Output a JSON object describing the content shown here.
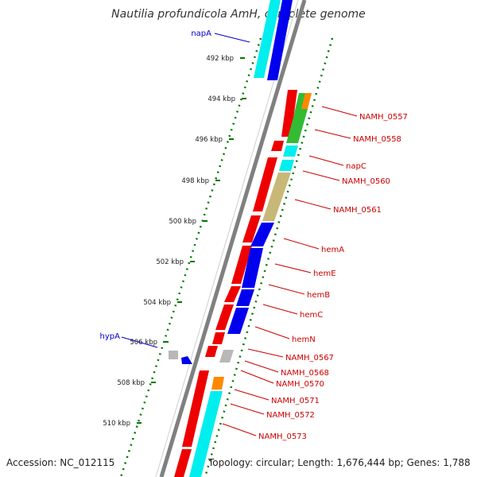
{
  "title": "Nautilia profundicola AmH, complete genome",
  "accession": "Accession: NC_012115",
  "topology": "Topology: circular; Length: 1,676,444 bp; Genes: 1,788",
  "colors": {
    "label_red": "#cc0000",
    "label_blue": "#0000cc",
    "backbone": "#808080",
    "tick": "#007700",
    "cds_red": "#ee0000",
    "cds_blue": "#0000ee",
    "cds_cyan": "#00eeee",
    "cds_green": "#33bb33",
    "cds_orange": "#ff8800",
    "cds_khaki": "#c8b878",
    "cds_gray": "#b8b8b8"
  },
  "ticks": [
    "492 kbp",
    "494 kbp",
    "496 kbp",
    "498 kbp",
    "500 kbp",
    "502 kbp",
    "504 kbp",
    "506 kbp",
    "508 kbp",
    "510 kbp"
  ],
  "blue_labels": [
    "napA",
    "hypA"
  ],
  "red_labels": [
    "NAMH_0557",
    "NAMH_0558",
    "napC",
    "NAMH_0560",
    "NAMH_0561",
    "hemA",
    "hemE",
    "hemB",
    "hemC",
    "hemN",
    "NAMH_0567",
    "NAMH_0568",
    "NAMH_0570",
    "NAMH_0571",
    "NAMH_0572",
    "NAMH_0573"
  ]
}
